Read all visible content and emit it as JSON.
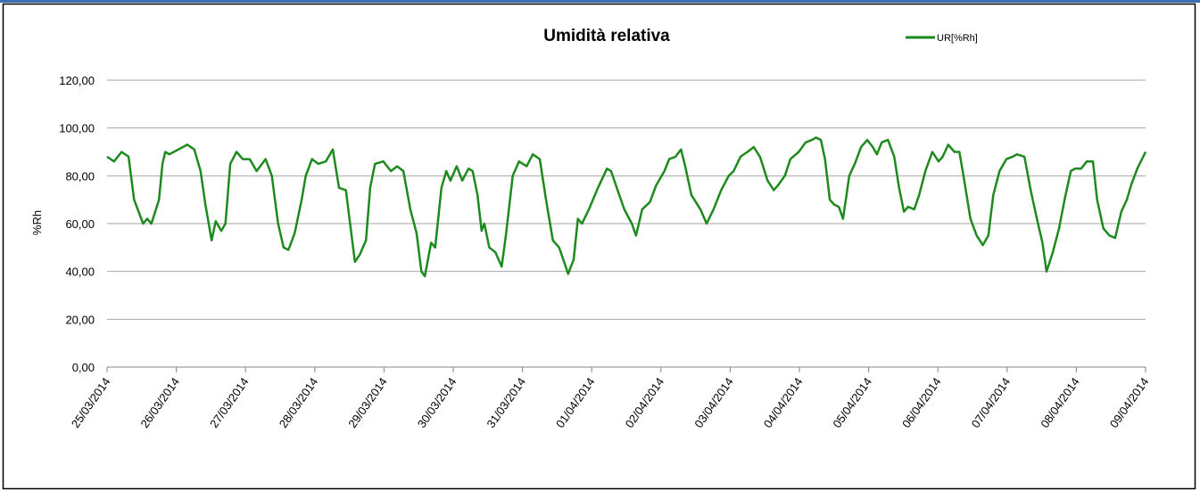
{
  "chart_data": {
    "type": "line",
    "title": "Umidità relativa",
    "y_label": "%Rh",
    "x": [
      0,
      0.1,
      0.21,
      0.31,
      0.39,
      0.52,
      0.58,
      0.64,
      0.75,
      0.8,
      0.84,
      0.9,
      1.03,
      1.16,
      1.26,
      1.35,
      1.42,
      1.51,
      1.57,
      1.65,
      1.71,
      1.78,
      1.87,
      1.96,
      2.06,
      2.16,
      2.29,
      2.38,
      2.47,
      2.55,
      2.62,
      2.71,
      2.81,
      2.87,
      2.96,
      3.05,
      3.16,
      3.26,
      3.35,
      3.45,
      3.51,
      3.58,
      3.65,
      3.74,
      3.8,
      3.87,
      3.99,
      4.1,
      4.19,
      4.28,
      4.38,
      4.47,
      4.54,
      4.59,
      4.68,
      4.74,
      4.83,
      4.9,
      4.96,
      5.05,
      5.13,
      5.22,
      5.28,
      5.35,
      5.41,
      5.45,
      5.52,
      5.61,
      5.7,
      5.76,
      5.86,
      5.95,
      6.06,
      6.15,
      6.25,
      6.34,
      6.44,
      6.53,
      6.6,
      6.66,
      6.74,
      6.8,
      6.86,
      6.96,
      7.09,
      7.22,
      7.28,
      7.35,
      7.47,
      7.58,
      7.64,
      7.73,
      7.84,
      7.93,
      8.05,
      8.12,
      8.21,
      8.29,
      8.35,
      8.44,
      8.57,
      8.66,
      8.76,
      8.87,
      8.98,
      9.05,
      9.15,
      9.25,
      9.34,
      9.43,
      9.54,
      9.63,
      9.69,
      9.79,
      9.87,
      9.99,
      10.09,
      10.18,
      10.24,
      10.31,
      10.37,
      10.44,
      10.5,
      10.57,
      10.63,
      10.72,
      10.8,
      10.89,
      10.98,
      11.06,
      11.12,
      11.19,
      11.28,
      11.37,
      11.44,
      11.51,
      11.57,
      11.66,
      11.73,
      11.82,
      11.92,
      12.01,
      12.07,
      12.15,
      12.24,
      12.31,
      12.37,
      12.47,
      12.56,
      12.65,
      12.73,
      12.8,
      12.89,
      12.99,
      13.08,
      13.14,
      13.25,
      13.34,
      13.43,
      13.51,
      13.57,
      13.66,
      13.75,
      13.83,
      13.92,
      13.98,
      14.07,
      14.15,
      14.24,
      14.3,
      14.39,
      14.48,
      14.56,
      14.65,
      14.73,
      14.79,
      14.88,
      15.0
    ],
    "series": [
      {
        "name": "UR[%Rh]",
        "color": "#1e8a1e",
        "values": [
          88,
          86,
          90,
          88,
          70,
          60,
          62,
          60,
          70,
          85,
          90,
          89,
          91,
          93,
          91,
          82,
          68,
          53,
          61,
          57,
          60,
          85,
          90,
          87,
          87,
          82,
          87,
          80,
          60,
          50,
          49,
          56,
          70,
          80,
          87,
          85,
          86,
          91,
          75,
          74,
          60,
          44,
          47,
          53,
          75,
          85,
          86,
          82,
          84,
          82,
          66,
          56,
          40,
          38,
          52,
          50,
          75,
          82,
          78,
          84,
          78,
          83,
          82,
          72,
          57,
          60,
          50,
          48,
          42,
          55,
          80,
          86,
          84,
          89,
          87,
          70,
          53,
          50,
          44,
          39,
          45,
          62,
          60,
          66,
          75,
          83,
          82,
          76,
          66,
          60,
          55,
          66,
          69,
          76,
          82,
          87,
          88,
          91,
          84,
          72,
          66,
          60,
          66,
          74,
          80,
          82,
          88,
          90,
          92,
          88,
          78,
          74,
          76,
          80,
          87,
          90,
          94,
          95,
          96,
          95,
          87,
          70,
          68,
          67,
          62,
          80,
          85,
          92,
          95,
          92,
          89,
          94,
          95,
          88,
          75,
          65,
          67,
          66,
          72,
          82,
          90,
          86,
          88,
          93,
          90,
          90,
          80,
          62,
          55,
          51,
          55,
          72,
          82,
          87,
          88,
          89,
          88,
          74,
          62,
          52,
          40,
          48,
          58,
          70,
          82,
          83,
          83,
          86,
          86,
          70,
          58,
          55,
          54,
          65,
          70,
          76,
          83,
          90
        ]
      }
    ],
    "xlim": [
      0,
      15
    ],
    "xticks": [
      {
        "value": 0,
        "label": "25/03/2014"
      },
      {
        "value": 1,
        "label": "26/03/2014"
      },
      {
        "value": 2,
        "label": "27/03/2014"
      },
      {
        "value": 3,
        "label": "28/03/2014"
      },
      {
        "value": 4,
        "label": "29/03/2014"
      },
      {
        "value": 5,
        "label": "30/03/2014"
      },
      {
        "value": 6,
        "label": "31/03/2014"
      },
      {
        "value": 7,
        "label": "01/04/2014"
      },
      {
        "value": 8,
        "label": "02/04/2014"
      },
      {
        "value": 9,
        "label": "03/04/2014"
      },
      {
        "value": 10,
        "label": "04/04/2014"
      },
      {
        "value": 11,
        "label": "05/04/2014"
      },
      {
        "value": 12,
        "label": "06/04/2014"
      },
      {
        "value": 13,
        "label": "07/04/2014"
      },
      {
        "value": 14,
        "label": "08/04/2014"
      },
      {
        "value": 15,
        "label": "09/04/2014"
      }
    ],
    "ylim": [
      0,
      120
    ],
    "yticks": [
      {
        "value": 0,
        "label": "0,00"
      },
      {
        "value": 20,
        "label": "20,00"
      },
      {
        "value": 40,
        "label": "40,00"
      },
      {
        "value": 60,
        "label": "60,00"
      },
      {
        "value": 80,
        "label": "80,00"
      },
      {
        "value": 100,
        "label": "100,00"
      },
      {
        "value": 120,
        "label": "120,00"
      }
    ],
    "grid": true
  }
}
